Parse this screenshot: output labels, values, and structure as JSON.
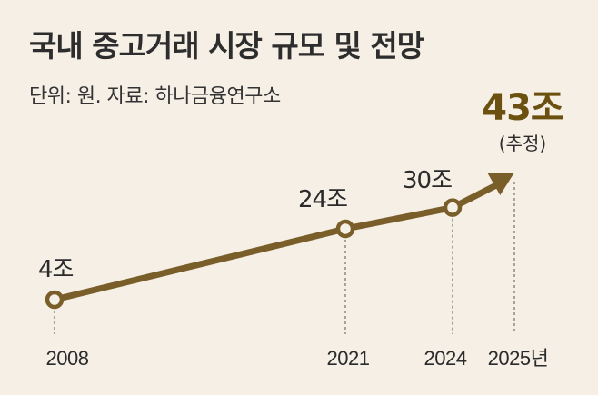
{
  "title": "국내 중고거래 시장 규모 및 전망",
  "subtitle": "단위: 원. 자료: 하나금융연구소",
  "colors": {
    "background": "#f5efe6",
    "line": "#7a5e2a",
    "highlight": "#6b5010",
    "text": "#2b2b2b"
  },
  "chart_data": {
    "type": "line",
    "title": "국내 중고거래 시장 규모 및 전망",
    "unit": "원",
    "source": "하나금융연구소",
    "x": [
      2008,
      2021,
      2024,
      2025
    ],
    "xlabels": [
      "2008",
      "2021",
      "2024",
      "2025년"
    ],
    "values": [
      4,
      24,
      30,
      43
    ],
    "point_labels": [
      "4조",
      "24조",
      "30조",
      "43조"
    ],
    "estimate_note": "(추정)",
    "estimated": [
      false,
      false,
      false,
      true
    ],
    "grid": false,
    "legend": "none"
  }
}
